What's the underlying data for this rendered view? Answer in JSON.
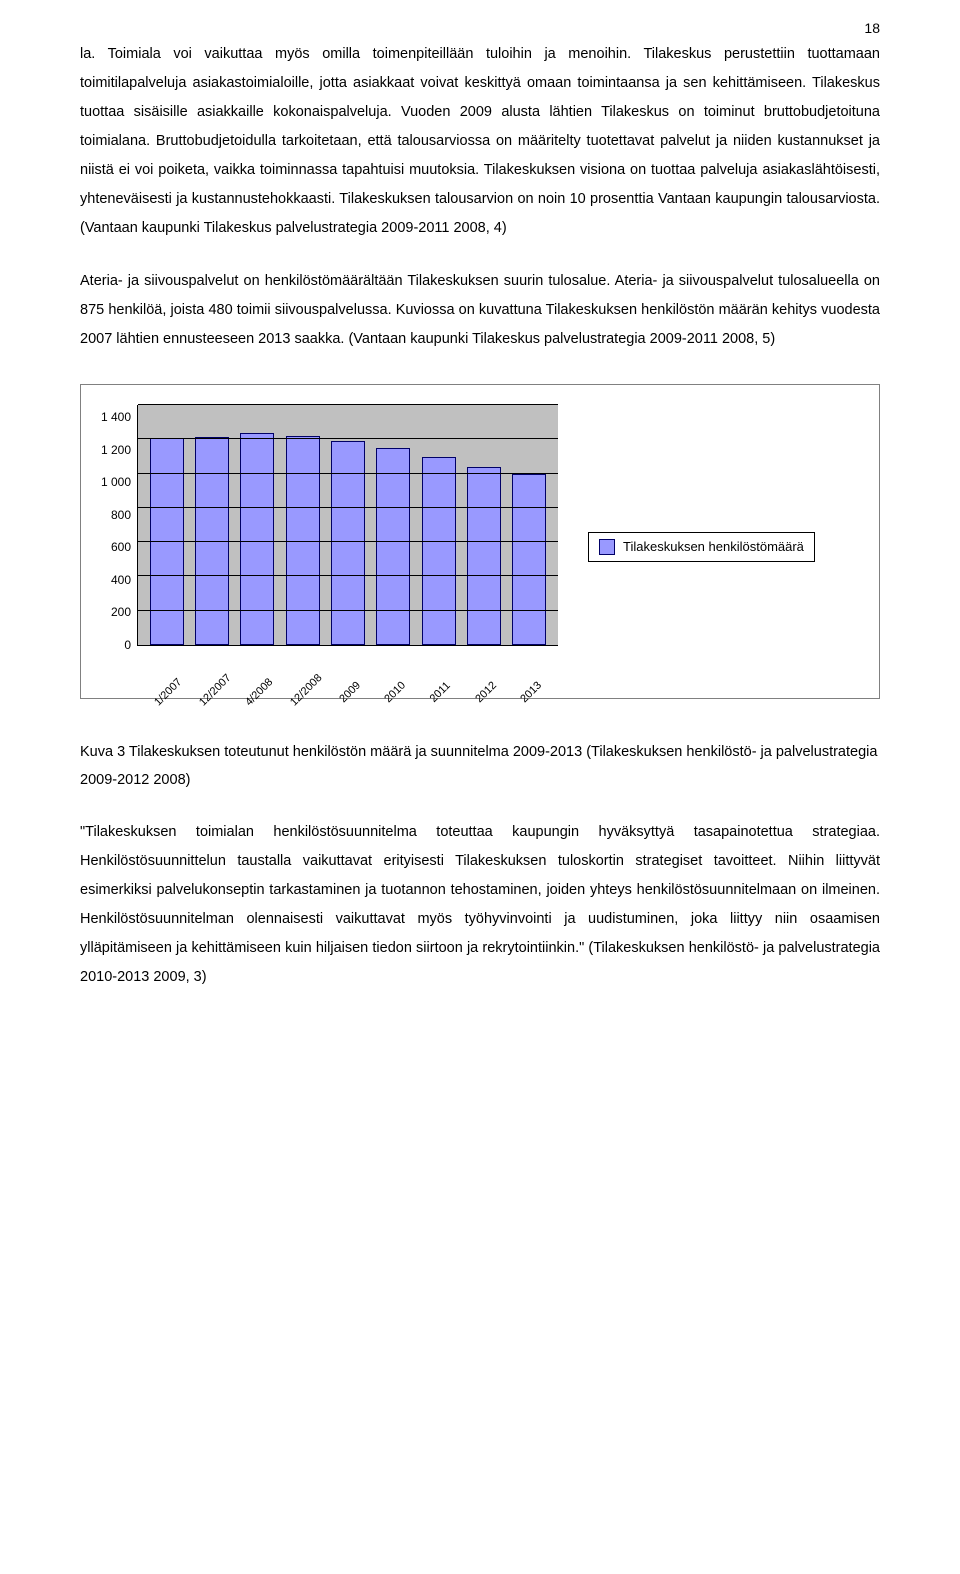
{
  "page_number": "18",
  "paragraphs": {
    "p1": "la. Toimiala voi vaikuttaa myös omilla toimenpiteillään tuloihin ja menoihin. Tilakeskus perustettiin tuottamaan toimitilapalveluja asiakastoimialoille, jotta asiakkaat voivat keskittyä omaan toimintaansa ja sen kehittämiseen. Tilakeskus tuottaa sisäisille asiakkaille kokonaispalveluja. Vuoden 2009 alusta lähtien Tilakeskus on toiminut bruttobudjetoituna toimialana. Bruttobudjetoidulla tarkoitetaan, että talousarviossa on määritelty tuotettavat palvelut ja niiden kustannukset ja niistä ei voi poiketa, vaikka toiminnassa tapahtuisi muutoksia. Tilakeskuksen visiona on tuottaa palveluja asiakaslähtöisesti, yhteneväisesti ja kustannustehokkaasti. Tilakeskuksen talousarvion on noin 10 prosenttia Vantaan kaupungin talousarviosta. (Vantaan kaupunki Tilakeskus palvelustrategia 2009-2011 2008, 4)",
    "p2": "Ateria- ja siivouspalvelut on henkilöstömäärältään Tilakeskuksen suurin tulosalue. Ateria- ja siivouspalvelut tulosalueella on 875 henkilöä, joista 480 toimii siivouspalvelussa. Kuviossa on kuvattuna Tilakeskuksen henkilöstön määrän kehitys vuodesta 2007 lähtien ennusteeseen 2013 saakka. (Vantaan kaupunki Tilakeskus palvelustrategia 2009-2011 2008, 5)",
    "p3": "\"Tilakeskuksen toimialan henkilöstösuunnitelma toteuttaa kaupungin hyväksyttyä tasapainotettua strategiaa. Henkilöstösuunnittelun taustalla vaikuttavat erityisesti Tilakeskuksen tuloskortin strategiset tavoitteet. Niihin liittyvät esimerkiksi palvelukonseptin tarkastaminen ja tuotannon tehostaminen, joiden yhteys henkilöstösuunnitelmaan on ilmeinen. Henkilöstösuunnitelman olennaisesti vaikuttavat myös työhyvinvointi ja uudistuminen, joka liittyy niin osaamisen ylläpitämiseen ja kehittämiseen kuin hiljaisen tiedon siirtoon ja rekrytointiinkin.\" (Tilakeskuksen henkilöstö- ja palvelustrategia 2010-2013 2009, 3)"
  },
  "chart": {
    "type": "bar",
    "categories": [
      "1/2007",
      "12/2007",
      "4/2008",
      "12/2008",
      "2009",
      "2010",
      "2011",
      "2012",
      "2013"
    ],
    "values": [
      1210,
      1215,
      1235,
      1220,
      1190,
      1150,
      1095,
      1040,
      1000
    ],
    "ymax": 1400,
    "ytick_step": 200,
    "yticks": [
      "1 400",
      "1 200",
      "1 000",
      "800",
      "600",
      "400",
      "200",
      "0"
    ],
    "bar_color": "#9999ff",
    "bar_border": "#000066",
    "plot_bg": "#c0c0c0",
    "grid_color": "#000000",
    "legend_label": "Tilakeskuksen henkilöstömäärä"
  },
  "caption": "Kuva 3 Tilakeskuksen toteutunut henkilöstön määrä ja suunnitelma 2009-2013 (Tilakeskuksen henkilöstö- ja palvelustrategia 2009-2012 2008)"
}
